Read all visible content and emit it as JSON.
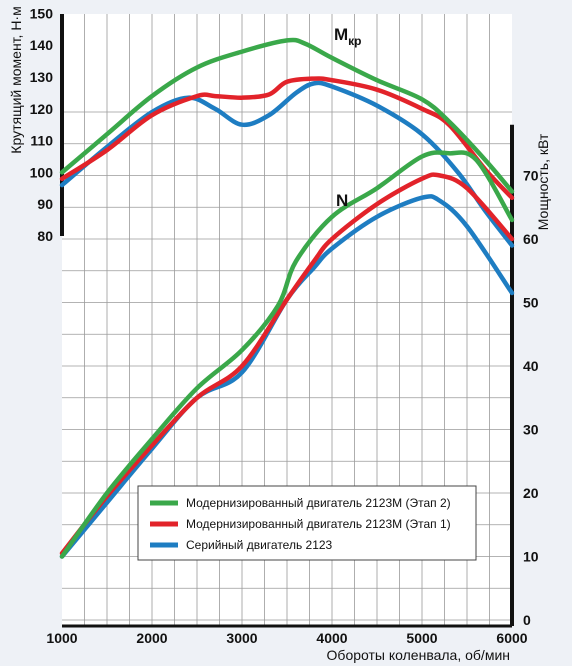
{
  "chart_data": {
    "type": "line",
    "xlabel": "Обороты коленвала, об/мин",
    "ylabel_left": "Крутящий момент, Н·м",
    "ylabel_right": "Мощность, кВт",
    "x_ticks": [
      1000,
      2000,
      3000,
      4000,
      5000,
      6000
    ],
    "y_left_ticks": [
      80,
      90,
      100,
      110,
      120,
      130,
      140,
      150
    ],
    "y_right_ticks": [
      0,
      10,
      20,
      30,
      40,
      50,
      60,
      70
    ],
    "xlim": [
      1000,
      6000
    ],
    "ylim_left": [
      80,
      150
    ],
    "ylim_right": [
      0,
      80
    ],
    "grid": true,
    "legend_position": "bottom-center",
    "annotations": [
      {
        "text": "М",
        "sub": "кр",
        "series_group": "torque"
      },
      {
        "text": "N",
        "series_group": "power"
      }
    ],
    "series": [
      {
        "name": "Модернизированный двигатель 2123М (Этап 2)",
        "color": "#3aa84a",
        "torque": {
          "x": [
            1000,
            1500,
            2000,
            2500,
            3000,
            3500,
            3700,
            4000,
            4500,
            5000,
            5300,
            5700,
            6000
          ],
          "y": [
            100,
            112,
            124,
            133,
            138,
            141.5,
            140.5,
            136,
            129,
            123,
            116,
            104,
            94
          ]
        },
        "power": {
          "x": [
            1000,
            1500,
            2000,
            2500,
            3000,
            3400,
            3600,
            4000,
            4500,
            5000,
            5300,
            5600,
            6000
          ],
          "y": [
            10,
            20,
            28.5,
            36.5,
            42.5,
            49.5,
            56.5,
            63.5,
            68,
            73,
            73.5,
            72.5,
            63
          ]
        }
      },
      {
        "name": "Модернизированный двигатель 2123М (Этап 1)",
        "color": "#e2232a",
        "torque": {
          "x": [
            1000,
            1500,
            2000,
            2500,
            2700,
            3000,
            3300,
            3500,
            3800,
            4000,
            4500,
            5000,
            5300,
            5700,
            6000
          ],
          "y": [
            98,
            107,
            118,
            124,
            124,
            123.5,
            124.5,
            128.5,
            129.5,
            129,
            126,
            120,
            115,
            101,
            92
          ]
        },
        "power": {
          "x": [
            1000,
            1500,
            2000,
            2500,
            3000,
            3500,
            3800,
            4000,
            4500,
            5000,
            5200,
            5500,
            6000
          ],
          "y": [
            10.5,
            19.5,
            27.5,
            35,
            40,
            50.5,
            56.5,
            60,
            65.5,
            69.5,
            70,
            68,
            60
          ]
        }
      },
      {
        "name": "Серийный двигатель 2123",
        "color": "#1e7dc2",
        "torque": {
          "x": [
            1000,
            1500,
            2000,
            2400,
            2700,
            3000,
            3300,
            3600,
            3800,
            4000,
            4500,
            5000,
            5400,
            5700,
            6000
          ],
          "y": [
            96,
            108,
            119,
            123.5,
            120,
            115,
            118,
            125,
            128,
            127,
            121,
            112,
            100,
            88,
            77
          ]
        },
        "power": {
          "x": [
            1000,
            1500,
            2000,
            2500,
            3000,
            3500,
            3800,
            4000,
            4500,
            5000,
            5200,
            5500,
            6000
          ],
          "y": [
            10,
            18.5,
            27,
            35,
            39,
            50.5,
            55.5,
            58.5,
            63.5,
            66.5,
            66,
            62,
            51.5
          ]
        }
      }
    ]
  }
}
